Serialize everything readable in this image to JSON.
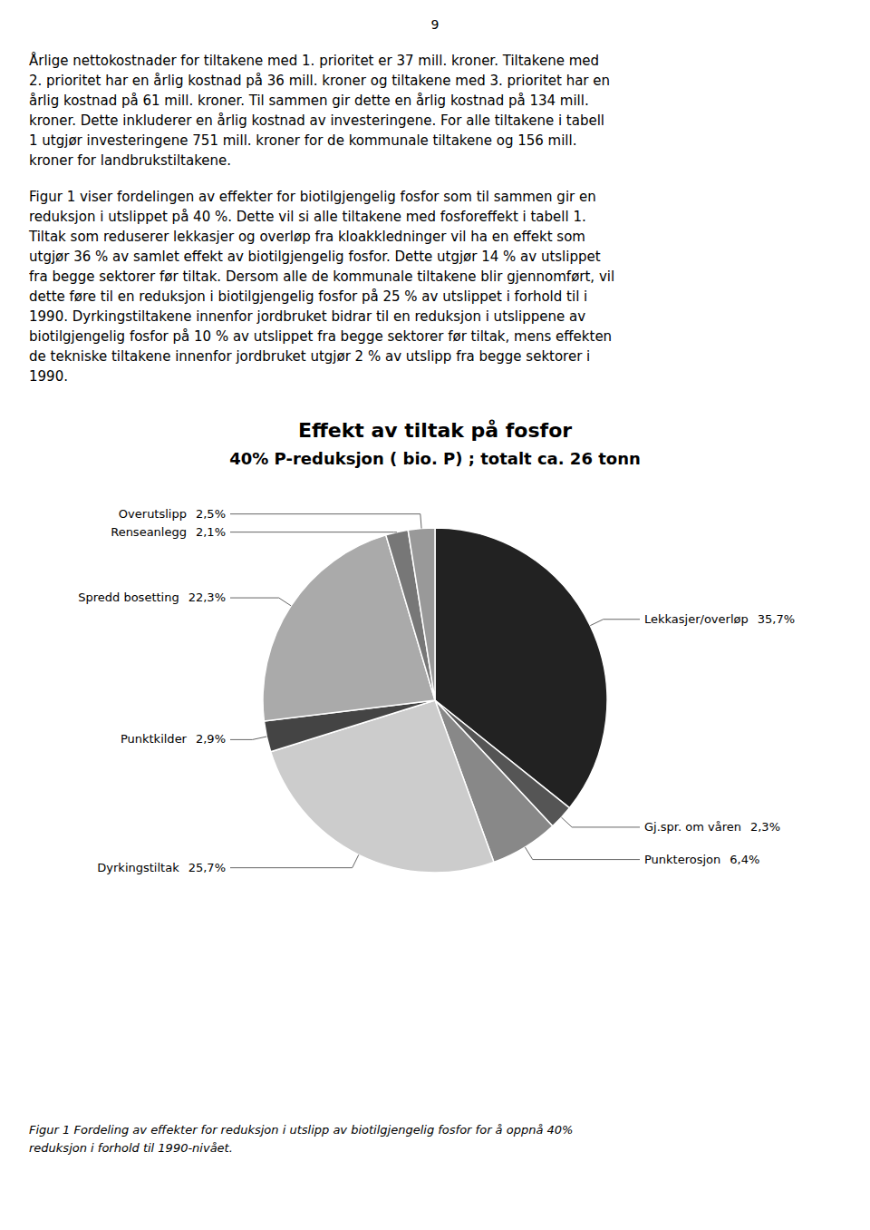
{
  "page_number": "9",
  "paragraphs": [
    [
      "Årlige nettokostnader for tiltakene med 1. prioritet er 37 mill. kroner. Tiltakene med",
      "2. prioritet har en årlig kostnad på 36 mill. kroner og tiltakene med 3. prioritet har en",
      "årlig kostnad på 61 mill. kroner. Til sammen gir dette en årlig kostnad på 134 mill.",
      "kroner. Dette inkluderer en årlig kostnad av investeringene. For alle tiltakene i tabell",
      "1 utgjør investeringene 751 mill. kroner for de kommunale tiltakene og 156 mill.",
      "kroner for landbrukstiltakene."
    ],
    [
      "Figur 1 viser fordelingen av effekter for biotilgjengelig fosfor som til sammen gir en",
      "reduksjon i utslippet på 40 %. Dette vil si alle tiltakene med fosforeffekt i tabell 1.",
      "Tiltak som reduserer lekkasjer og overløp fra kloakkledninger vil ha en effekt som",
      "utgjør 36 % av samlet effekt av biotilgjengelig fosfor. Dette utgjør 14 % av utslippet",
      "fra begge sektorer før tiltak. Dersom alle de kommunale tiltakene blir gjennomført, vil",
      "dette føre til en reduksjon i biotilgjengelig fosfor på 25 % av utslippet i forhold til i",
      "1990. Dyrkingstiltakene innenfor jordbruket bidrar til en reduksjon i utslippene av",
      "biotilgjengelig fosfor på 10 % av utslippet fra begge sektorer før tiltak, mens effekten",
      "de tekniske tiltakene innenfor jordbruket utgjør 2 % av utslipp fra begge sektorer i",
      "1990."
    ]
  ],
  "chart_data": {
    "type": "pie",
    "title": "Effekt av tiltak på fosfor",
    "subtitle": "40% P-reduksjon  ( bio. P)  ; totalt ca. 26 tonn",
    "categories": [
      "Lekkasjer/overløp",
      "Gj.spr. om våren",
      "Punkterosjon",
      "Dyrkingstiltak",
      "Punktkilder",
      "Spredd bosetting",
      "Renseanlegg",
      "Overutslipp"
    ],
    "values": [
      35.7,
      2.3,
      6.4,
      25.7,
      2.9,
      22.3,
      2.1,
      2.5
    ],
    "value_labels": [
      "35,7%",
      "2,3%",
      "6,4%",
      "25,7%",
      "2,9%",
      "22,3%",
      "2,1%",
      "2,5%"
    ],
    "colors": [
      "#222222",
      "#555555",
      "#888888",
      "#cccccc",
      "#444444",
      "#aaaaaa",
      "#777777",
      "#999999"
    ],
    "data_labels": true
  },
  "caption": [
    "Figur 1  Fordeling av effekter for reduksjon i utslipp av biotilgjengelig fosfor for å oppnå 40%",
    "reduksjon i forhold til 1990-nivået."
  ]
}
